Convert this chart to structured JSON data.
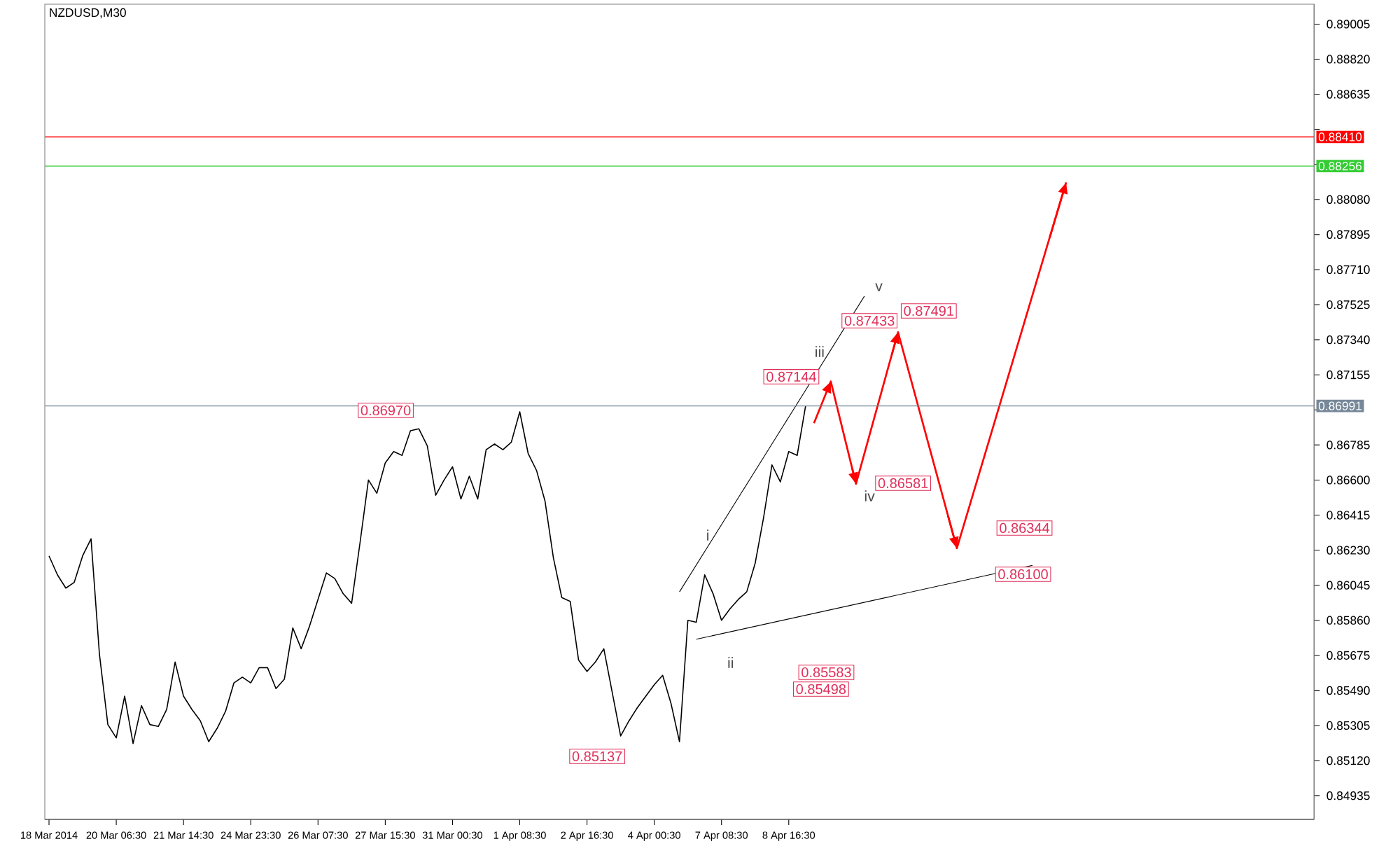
{
  "chart_data": {
    "type": "line",
    "title": "NZDUSD,M30",
    "categories": [
      "18 Mar 2014",
      null,
      null,
      null,
      null,
      null,
      null,
      null,
      "20 Mar 06:30",
      null,
      null,
      null,
      null,
      null,
      null,
      null,
      "21 Mar 14:30",
      null,
      null,
      null,
      null,
      null,
      null,
      null,
      "24 Mar 23:30",
      null,
      null,
      null,
      null,
      null,
      null,
      null,
      "26 Mar 07:30",
      null,
      null,
      null,
      null,
      null,
      null,
      null,
      "27 Mar 15:30",
      null,
      null,
      null,
      null,
      null,
      null,
      null,
      "31 Mar 00:30",
      null,
      null,
      null,
      null,
      null,
      null,
      null,
      "1 Apr 08:30",
      null,
      null,
      null,
      null,
      null,
      null,
      null,
      "2 Apr 16:30",
      null,
      null,
      null,
      null,
      null,
      null,
      null,
      "4 Apr 00:30",
      null,
      null,
      null,
      null,
      null,
      null,
      null,
      "7 Apr 08:30",
      null,
      null,
      null,
      null,
      null,
      null,
      null,
      "8 Apr 16:30",
      null,
      null,
      null,
      null,
      null,
      null,
      null,
      null,
      null,
      null,
      null,
      null,
      null,
      null,
      null,
      null,
      null,
      null,
      null,
      null,
      null,
      null,
      null,
      null,
      null,
      null,
      null,
      null,
      null,
      null,
      null,
      null,
      null,
      null,
      null,
      null,
      null,
      null,
      null,
      null,
      null,
      null,
      null,
      null,
      null,
      null,
      null,
      null,
      null,
      null,
      null,
      null,
      null,
      null,
      null,
      null,
      null,
      null,
      null,
      null,
      null,
      null
    ],
    "ylim": [
      0.8481,
      0.8911
    ],
    "yticks": [
      {
        "value": 0.89005,
        "label": "0.89005"
      },
      {
        "value": 0.8882,
        "label": "0.88820"
      },
      {
        "value": 0.88635,
        "label": "0.88635"
      },
      {
        "value": 0.8845,
        "label": null
      },
      {
        "value": 0.88265,
        "label": null
      },
      {
        "value": 0.8808,
        "label": "0.88080"
      },
      {
        "value": 0.87895,
        "label": "0.87895"
      },
      {
        "value": 0.8771,
        "label": "0.87710"
      },
      {
        "value": 0.87525,
        "label": "0.87525"
      },
      {
        "value": 0.8734,
        "label": "0.87340"
      },
      {
        "value": 0.87155,
        "label": "0.87155"
      },
      {
        "value": 0.8697,
        "label": null
      },
      {
        "value": 0.86785,
        "label": "0.86785"
      },
      {
        "value": 0.866,
        "label": "0.86600"
      },
      {
        "value": 0.86415,
        "label": "0.86415"
      },
      {
        "value": 0.8623,
        "label": "0.86230"
      },
      {
        "value": 0.86045,
        "label": "0.86045"
      },
      {
        "value": 0.8586,
        "label": "0.85860"
      },
      {
        "value": 0.85675,
        "label": "0.85675"
      },
      {
        "value": 0.8549,
        "label": "0.85490"
      },
      {
        "value": 0.85305,
        "label": "0.85305"
      },
      {
        "value": 0.8512,
        "label": "0.85120"
      },
      {
        "value": 0.84935,
        "label": "0.84935"
      }
    ],
    "series": [
      {
        "color": "#000000",
        "values": [
          0.862,
          0.861,
          0.8603,
          0.8606,
          0.862,
          0.8629,
          0.8568,
          0.8531,
          0.8524,
          0.8546,
          0.8521,
          0.8541,
          0.8531,
          0.853,
          0.8539,
          0.8564,
          0.8546,
          0.8539,
          0.8533,
          0.8522,
          0.8529,
          0.8538,
          0.8553,
          0.8556,
          0.8553,
          0.8561,
          0.8561,
          0.855,
          0.8555,
          0.8582,
          0.8571,
          0.8583,
          0.8597,
          0.8611,
          0.8608,
          0.86,
          0.8595,
          0.8627,
          0.866,
          0.8653,
          0.8669,
          0.8675,
          0.8673,
          0.8686,
          0.8687,
          0.8678,
          0.8652,
          0.866,
          0.8667,
          0.865,
          0.8662,
          0.865,
          0.8676,
          0.8679,
          0.8676,
          0.868,
          0.8696,
          0.8674,
          0.8665,
          0.8649,
          0.8619,
          0.8598,
          0.8596,
          0.8565,
          0.8559,
          0.8564,
          0.8571,
          0.8548,
          0.8525,
          0.8533,
          0.854,
          0.8546,
          0.8552,
          0.8557,
          0.8542,
          0.8522,
          0.8586,
          0.8585,
          0.861,
          0.86,
          0.8586,
          0.8592,
          0.8597,
          0.8601,
          0.8616,
          0.864,
          0.8668,
          0.8659,
          0.8675,
          0.8673,
          0.8699,
          null,
          null,
          null,
          null,
          null,
          null,
          null,
          null,
          null,
          null,
          null,
          null,
          null,
          null,
          null,
          null,
          null,
          null,
          null,
          null,
          null,
          null,
          null,
          null,
          null,
          null,
          null,
          null,
          null,
          null,
          null,
          null,
          null,
          null,
          null,
          null,
          null,
          null,
          null,
          null,
          null,
          null,
          null,
          null,
          null,
          null,
          null,
          null,
          null,
          null,
          null,
          null,
          null,
          null,
          null,
          null,
          null,
          null,
          null,
          null
        ]
      },
      {
        "color": "#000000",
        "values": [
          null,
          null,
          null,
          null,
          null,
          null,
          null,
          null,
          null,
          null,
          null,
          null,
          null,
          null,
          null,
          null,
          null,
          null,
          null,
          null,
          null,
          null,
          null,
          null,
          null,
          null,
          null,
          null,
          null,
          null,
          null,
          null,
          null,
          null,
          null,
          null,
          null,
          null,
          null,
          null,
          null,
          null,
          null,
          null,
          null,
          null,
          null,
          null,
          null,
          null,
          null,
          null,
          null,
          null,
          null,
          null,
          null,
          null,
          null,
          null,
          null,
          null,
          null,
          null,
          null,
          null,
          null,
          null,
          null,
          null,
          null,
          null,
          null,
          null,
          null,
          0.8601,
          null,
          null,
          null,
          null,
          null,
          null,
          null,
          null,
          null,
          null,
          null,
          null,
          null,
          null,
          null,
          null,
          null,
          null,
          null,
          null,
          null,
          0.8757,
          null,
          null,
          null,
          null,
          null,
          null,
          null,
          null,
          null,
          null,
          null,
          null,
          null,
          null,
          null,
          null,
          null,
          null,
          null,
          null,
          null,
          null,
          null,
          null,
          null,
          null,
          null,
          null,
          null,
          null,
          null,
          null,
          null,
          null,
          null,
          null,
          null,
          null,
          null,
          null,
          null,
          null,
          null,
          null,
          null,
          null,
          null,
          null,
          null,
          null,
          null,
          null,
          null
        ]
      },
      {
        "color": "#000000",
        "values": [
          null,
          null,
          null,
          null,
          null,
          null,
          null,
          null,
          null,
          null,
          null,
          null,
          null,
          null,
          null,
          null,
          null,
          null,
          null,
          null,
          null,
          null,
          null,
          null,
          null,
          null,
          null,
          null,
          null,
          null,
          null,
          null,
          null,
          null,
          null,
          null,
          null,
          null,
          null,
          null,
          null,
          null,
          null,
          null,
          null,
          null,
          null,
          null,
          null,
          null,
          null,
          null,
          null,
          null,
          null,
          null,
          null,
          null,
          null,
          null,
          null,
          null,
          null,
          null,
          null,
          null,
          null,
          null,
          null,
          null,
          null,
          null,
          null,
          null,
          null,
          null,
          null,
          0.8576,
          null,
          null,
          null,
          null,
          null,
          null,
          null,
          null,
          null,
          null,
          null,
          null,
          null,
          null,
          null,
          null,
          null,
          null,
          null,
          null,
          null,
          null,
          null,
          null,
          null,
          null,
          null,
          null,
          null,
          null,
          null,
          null,
          null,
          null,
          null,
          null,
          null,
          null,
          null,
          0.8615,
          null,
          null,
          null,
          null,
          null,
          null,
          null,
          null,
          null,
          null,
          null,
          null,
          null,
          null,
          null,
          null,
          null,
          null,
          null,
          null,
          null,
          null,
          null,
          null,
          null,
          null,
          null,
          null,
          null,
          null,
          null,
          null,
          null
        ]
      },
      {
        "color": "#ff0000",
        "values": [
          null,
          null,
          null,
          null,
          null,
          null,
          null,
          null,
          null,
          null,
          null,
          null,
          null,
          null,
          null,
          null,
          null,
          null,
          null,
          null,
          null,
          null,
          null,
          null,
          null,
          null,
          null,
          null,
          null,
          null,
          null,
          null,
          null,
          null,
          null,
          null,
          null,
          null,
          null,
          null,
          null,
          null,
          null,
          null,
          null,
          null,
          null,
          null,
          null,
          null,
          null,
          null,
          null,
          null,
          null,
          null,
          null,
          null,
          null,
          null,
          null,
          null,
          null,
          null,
          null,
          null,
          null,
          null,
          null,
          null,
          null,
          null,
          null,
          null,
          null,
          null,
          null,
          null,
          null,
          null,
          null,
          null,
          null,
          null,
          null,
          null,
          null,
          null,
          null,
          null,
          null,
          0.869,
          null,
          0.8712,
          null,
          null,
          0.8658,
          null,
          null,
          null,
          null,
          0.8738,
          null,
          null,
          null,
          null,
          null,
          null,
          0.8624,
          null,
          null,
          null,
          null,
          null,
          null,
          null,
          null,
          null,
          null,
          null,
          null,
          0.8817,
          null,
          null,
          null,
          null,
          null,
          null,
          null,
          null,
          null,
          null,
          null,
          null,
          null,
          null,
          null,
          null,
          null,
          null,
          null,
          null,
          null,
          null,
          null,
          null,
          null,
          null,
          null,
          null,
          null
        ]
      }
    ],
    "ref_lines": [
      {
        "axis": "y",
        "value": 0.8841,
        "label": "0.88410",
        "color": "#ff0000"
      },
      {
        "axis": "y",
        "value": 0.88256,
        "label": "0.88256",
        "color": "#33cc33"
      },
      {
        "axis": "y",
        "value": 0.86991,
        "label": "0.86991",
        "color": "#778899"
      }
    ],
    "annotations": [
      "0.86970",
      "0.85137",
      "0.87144",
      "0.87433",
      "0.87491",
      "0.86581",
      "0.86344",
      "0.86100",
      "0.85583",
      "0.85498",
      "i",
      "ii",
      "iii",
      "iv",
      "v"
    ],
    "grid": false
  }
}
